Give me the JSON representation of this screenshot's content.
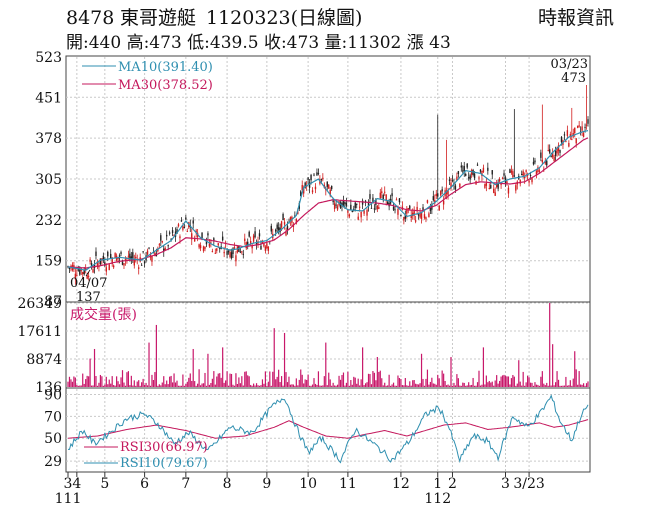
{
  "header": {
    "code": "8478",
    "name": "東哥遊艇",
    "date_code": "1120323(日線圖)",
    "source": "時報資訊",
    "stats": "開:440 高:473 低:439.5 收:473 量:11302 漲 43"
  },
  "chart_data": [
    {
      "type": "candlestick",
      "panel": "price",
      "y_ticks": [
        523,
        451,
        378,
        305,
        232,
        159,
        87
      ],
      "ylim": [
        87,
        523
      ],
      "legend": [
        {
          "label": "MA10(391.40)",
          "color": "#2f8fb0"
        },
        {
          "label": "MA30(378.52)",
          "color": "#c4185c"
        }
      ],
      "annotations": {
        "last_date": "03/23",
        "last_close": "473",
        "low_date": "04/07",
        "low_value": "137"
      },
      "candle_colors": {
        "up": "#d11d1d",
        "down": "#222222"
      },
      "ma10_anchors": [
        [
          0,
          148
        ],
        [
          12,
          142
        ],
        [
          22,
          160
        ],
        [
          35,
          165
        ],
        [
          50,
          160
        ],
        [
          60,
          178
        ],
        [
          70,
          195
        ],
        [
          80,
          230
        ],
        [
          90,
          200
        ],
        [
          100,
          185
        ],
        [
          110,
          178
        ],
        [
          115,
          180
        ],
        [
          125,
          190
        ],
        [
          135,
          195
        ],
        [
          145,
          215
        ],
        [
          155,
          240
        ],
        [
          160,
          290
        ],
        [
          170,
          305
        ],
        [
          180,
          270
        ],
        [
          190,
          250
        ],
        [
          200,
          248
        ],
        [
          210,
          270
        ],
        [
          220,
          265
        ],
        [
          230,
          238
        ],
        [
          240,
          245
        ],
        [
          250,
          265
        ],
        [
          260,
          290
        ],
        [
          270,
          320
        ],
        [
          280,
          315
        ],
        [
          290,
          295
        ],
        [
          300,
          305
        ],
        [
          310,
          310
        ],
        [
          320,
          325
        ],
        [
          330,
          355
        ],
        [
          340,
          380
        ],
        [
          350,
          390
        ],
        [
          353,
          391.4
        ]
      ],
      "ma30_anchors": [
        [
          0,
          148
        ],
        [
          12,
          146
        ],
        [
          22,
          150
        ],
        [
          35,
          158
        ],
        [
          50,
          162
        ],
        [
          60,
          170
        ],
        [
          70,
          182
        ],
        [
          80,
          200
        ],
        [
          90,
          198
        ],
        [
          100,
          194
        ],
        [
          110,
          188
        ],
        [
          120,
          184
        ],
        [
          130,
          188
        ],
        [
          140,
          196
        ],
        [
          150,
          215
        ],
        [
          160,
          240
        ],
        [
          170,
          262
        ],
        [
          180,
          268
        ],
        [
          190,
          266
        ],
        [
          200,
          264
        ],
        [
          210,
          262
        ],
        [
          220,
          258
        ],
        [
          230,
          250
        ],
        [
          240,
          248
        ],
        [
          250,
          258
        ],
        [
          260,
          278
        ],
        [
          270,
          295
        ],
        [
          280,
          300
        ],
        [
          290,
          298
        ],
        [
          300,
          296
        ],
        [
          310,
          300
        ],
        [
          320,
          315
        ],
        [
          330,
          335
        ],
        [
          340,
          355
        ],
        [
          350,
          375
        ],
        [
          353,
          378.52
        ]
      ],
      "spikes": [
        [
          251,
          420
        ],
        [
          257,
          375
        ],
        [
          303,
          430
        ],
        [
          322,
          438
        ],
        [
          342,
          432
        ],
        [
          352,
          473
        ]
      ]
    },
    {
      "type": "bar",
      "panel": "volume",
      "title": "成交量(張)",
      "y_ticks": [
        26349,
        17611,
        8874,
        136
      ],
      "ylim": [
        136,
        26349
      ],
      "color": "#c8186a",
      "spikes": [
        [
          15,
          9000
        ],
        [
          18,
          12000
        ],
        [
          55,
          14000
        ],
        [
          60,
          19500
        ],
        [
          85,
          12000
        ],
        [
          95,
          10500
        ],
        [
          105,
          12500
        ],
        [
          140,
          18500
        ],
        [
          147,
          17000
        ],
        [
          175,
          14000
        ],
        [
          200,
          12500
        ],
        [
          210,
          9500
        ],
        [
          240,
          10500
        ],
        [
          260,
          9500
        ],
        [
          282,
          12500
        ],
        [
          306,
          8500
        ],
        [
          327,
          26349
        ],
        [
          329,
          13500
        ],
        [
          344,
          11302
        ]
      ]
    },
    {
      "type": "line",
      "panel": "rsi",
      "y_ticks": [
        90,
        70,
        50,
        29
      ],
      "ylim": [
        20,
        95
      ],
      "series": [
        {
          "name": "RSI30(66.97)",
          "color": "#c4185c",
          "anchors": [
            [
              0,
              50
            ],
            [
              20,
              52
            ],
            [
              40,
              58
            ],
            [
              60,
              62
            ],
            [
              80,
              57
            ],
            [
              100,
              50
            ],
            [
              120,
              52
            ],
            [
              140,
              60
            ],
            [
              150,
              66
            ],
            [
              160,
              60
            ],
            [
              175,
              52
            ],
            [
              190,
              50
            ],
            [
              200,
              53
            ],
            [
              215,
              57
            ],
            [
              230,
              52
            ],
            [
              245,
              58
            ],
            [
              255,
              62
            ],
            [
              270,
              64
            ],
            [
              285,
              58
            ],
            [
              300,
              60
            ],
            [
              310,
              62
            ],
            [
              320,
              64
            ],
            [
              330,
              60
            ],
            [
              340,
              62
            ],
            [
              353,
              67
            ]
          ]
        },
        {
          "name": "RSI10(79.67)",
          "color": "#2f8fb0",
          "anchors": [
            [
              0,
              40
            ],
            [
              10,
              57
            ],
            [
              18,
              45
            ],
            [
              28,
              55
            ],
            [
              40,
              68
            ],
            [
              52,
              72
            ],
            [
              62,
              62
            ],
            [
              72,
              45
            ],
            [
              82,
              55
            ],
            [
              95,
              38
            ],
            [
              110,
              60
            ],
            [
              125,
              55
            ],
            [
              138,
              78
            ],
            [
              147,
              88
            ],
            [
              155,
              60
            ],
            [
              163,
              37
            ],
            [
              172,
              50
            ],
            [
              185,
              30
            ],
            [
              195,
              58
            ],
            [
              210,
              42
            ],
            [
              220,
              30
            ],
            [
              232,
              48
            ],
            [
              243,
              72
            ],
            [
              252,
              78
            ],
            [
              258,
              62
            ],
            [
              266,
              30
            ],
            [
              275,
              52
            ],
            [
              284,
              48
            ],
            [
              292,
              33
            ],
            [
              302,
              70
            ],
            [
              312,
              60
            ],
            [
              320,
              72
            ],
            [
              328,
              88
            ],
            [
              334,
              66
            ],
            [
              342,
              48
            ],
            [
              348,
              70
            ],
            [
              353,
              80
            ]
          ]
        }
      ]
    }
  ],
  "x_axis": {
    "ticks": [
      {
        "label": "3",
        "d": 0
      },
      {
        "label": "4",
        "d": 6
      },
      {
        "label": "5",
        "d": 25
      },
      {
        "label": "6",
        "d": 52
      },
      {
        "label": "7",
        "d": 80
      },
      {
        "label": "8",
        "d": 108
      },
      {
        "label": "9",
        "d": 135
      },
      {
        "label": "10",
        "d": 163
      },
      {
        "label": "11",
        "d": 190
      },
      {
        "label": "12",
        "d": 226
      },
      {
        "label": "1",
        "d": 251
      },
      {
        "label": "2",
        "d": 261
      },
      {
        "label": "3",
        "d": 297
      },
      {
        "label": "3/23",
        "d": 313
      }
    ],
    "year_labels": [
      {
        "label": "111",
        "d": 0
      },
      {
        "label": "112",
        "d": 251
      }
    ],
    "total_days": 354
  }
}
